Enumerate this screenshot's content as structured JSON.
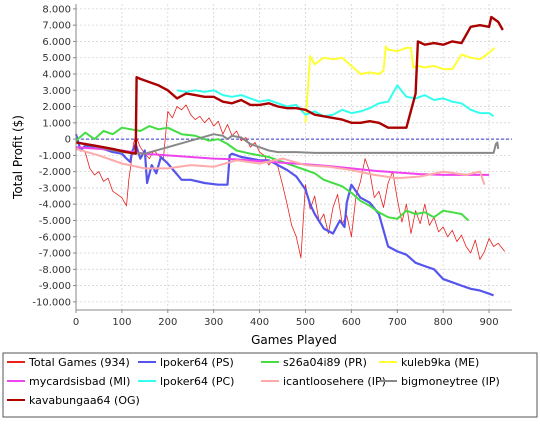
{
  "chart_data": {
    "type": "line",
    "xlabel": "Games Played",
    "ylabel": "Total Profit ($)",
    "xlim": [
      0,
      950
    ],
    "ylim": [
      -10500,
      8300
    ],
    "xticks": [
      0,
      100,
      200,
      300,
      400,
      500,
      600,
      700,
      800,
      900
    ],
    "xtick_labels": [
      "0",
      "100",
      "200",
      "300",
      "400",
      "500",
      "600",
      "700",
      "800",
      "900"
    ],
    "yticks": [
      8000,
      7000,
      6000,
      5000,
      4000,
      3000,
      2000,
      1000,
      0,
      -1000,
      -2000,
      -3000,
      -4000,
      -5000,
      -6000,
      -7000,
      -8000,
      -9000,
      -10000
    ],
    "ytick_labels": [
      "8.000",
      "7.000",
      "6.000",
      "5.000",
      "4.000",
      "3.000",
      "2.000",
      "1.000",
      "0",
      "-1.000",
      "-2.000",
      "-3.000",
      "-4.000",
      "-5.000",
      "-6.000",
      "-7.000",
      "-8.000",
      "-9.000",
      "-10.000"
    ],
    "grid": true,
    "legend_position": "bottom",
    "series": [
      {
        "name": "Total Games (934)",
        "color": "#e8211e",
        "width": 0.8,
        "x": [
          0,
          10,
          20,
          30,
          40,
          50,
          60,
          70,
          80,
          90,
          100,
          110,
          115,
          120,
          125,
          130,
          140,
          150,
          160,
          170,
          180,
          190,
          200,
          210,
          220,
          230,
          240,
          250,
          260,
          270,
          280,
          290,
          300,
          310,
          320,
          330,
          340,
          350,
          360,
          370,
          380,
          390,
          400,
          410,
          420,
          430,
          440,
          450,
          460,
          470,
          480,
          490,
          500,
          510,
          520,
          530,
          540,
          550,
          560,
          570,
          580,
          590,
          600,
          610,
          620,
          630,
          640,
          650,
          660,
          670,
          680,
          690,
          700,
          710,
          720,
          730,
          740,
          750,
          760,
          770,
          780,
          790,
          800,
          810,
          820,
          830,
          840,
          850,
          860,
          870,
          880,
          890,
          900,
          910,
          920,
          934
        ],
        "y": [
          300,
          -600,
          -800,
          -1800,
          -2200,
          -2000,
          -2600,
          -2400,
          -3200,
          -3400,
          -3600,
          -4100,
          -2500,
          -1500,
          -300,
          200,
          -500,
          -900,
          -1200,
          -700,
          -1000,
          -1300,
          1700,
          1300,
          2000,
          1800,
          2100,
          1500,
          1200,
          1400,
          1000,
          1300,
          800,
          1100,
          300,
          900,
          200,
          500,
          -100,
          100,
          -500,
          -200,
          -800,
          -1000,
          -1600,
          -1200,
          -1700,
          -2800,
          -4000,
          -5300,
          -6000,
          -7300,
          -2800,
          -4300,
          -3500,
          -5100,
          -4600,
          -5800,
          -4200,
          -3400,
          -5200,
          -4700,
          -6000,
          -3500,
          -2600,
          -1200,
          -2000,
          -3600,
          -3200,
          -4200,
          -2700,
          -2000,
          -3700,
          -5100,
          -4000,
          -5800,
          -4400,
          -5200,
          -4000,
          -5300,
          -4800,
          -5700,
          -5400,
          -6000,
          -5600,
          -6300,
          -5900,
          -6600,
          -7000,
          -6200,
          -7400,
          -6900,
          -6100,
          -6600,
          -6400,
          -6900
        ]
      },
      {
        "name": "lpoker64 (PS)",
        "color": "#5555ee",
        "width": 2.2,
        "x": [
          0,
          10,
          20,
          40,
          60,
          80,
          100,
          110,
          118,
          122,
          130,
          140,
          150,
          155,
          165,
          175,
          185,
          200,
          230,
          250,
          280,
          310,
          330,
          335,
          340,
          360,
          380,
          400,
          420,
          440,
          460,
          480,
          490,
          500,
          510,
          520,
          540,
          560,
          575,
          585,
          590,
          600,
          620,
          640,
          660,
          680,
          700,
          720,
          740,
          760,
          780,
          800,
          820,
          840,
          860,
          880,
          900,
          910
        ],
        "y": [
          300,
          -700,
          -400,
          -500,
          -600,
          -800,
          -900,
          -1200,
          -1400,
          -800,
          -300,
          -1200,
          -700,
          -2700,
          -1600,
          -2100,
          -1100,
          -1500,
          -2500,
          -2500,
          -2700,
          -2800,
          -2800,
          -1000,
          -900,
          -1100,
          -1200,
          -1300,
          -1300,
          -1600,
          -1900,
          -2300,
          -2700,
          -3100,
          -4000,
          -4600,
          -5500,
          -5800,
          -5000,
          -5400,
          -3900,
          -2800,
          -3600,
          -3900,
          -4600,
          -6600,
          -6900,
          -7100,
          -7600,
          -7800,
          -8000,
          -8600,
          -8800,
          -9000,
          -9200,
          -9300,
          -9500,
          -9600
        ]
      },
      {
        "name": "s26a04i89 (PR)",
        "color": "#44dd44",
        "width": 2.0,
        "x": [
          0,
          20,
          40,
          60,
          80,
          100,
          120,
          140,
          160,
          180,
          200,
          230,
          260,
          290,
          310,
          330,
          350,
          380,
          400,
          420,
          440,
          460,
          480,
          500,
          520,
          540,
          560,
          580,
          600,
          620,
          640,
          660,
          680,
          700,
          720,
          740,
          760,
          780,
          800,
          820,
          840,
          855
        ],
        "y": [
          -100,
          400,
          0,
          500,
          300,
          700,
          600,
          500,
          800,
          600,
          700,
          300,
          200,
          -100,
          0,
          -300,
          -700,
          -900,
          -1000,
          -1100,
          -1300,
          -1500,
          -1700,
          -1900,
          -2100,
          -2500,
          -2700,
          -2900,
          -3300,
          -3800,
          -4100,
          -4500,
          -4800,
          -4900,
          -4400,
          -4600,
          -4500,
          -4800,
          -4400,
          -4500,
          -4600,
          -5000
        ]
      },
      {
        "name": "kuleb9ka (ME)",
        "color": "#ffff33",
        "width": 2.0,
        "x": [
          500,
          510,
          520,
          540,
          560,
          580,
          600,
          620,
          640,
          660,
          670,
          675,
          680,
          700,
          720,
          730,
          735,
          745,
          760,
          780,
          800,
          820,
          840,
          860,
          880,
          900,
          912
        ],
        "y": [
          1000,
          5100,
          4600,
          5000,
          4900,
          5000,
          4500,
          4000,
          4100,
          4000,
          4200,
          5700,
          5500,
          5400,
          5600,
          5600,
          4400,
          4500,
          4400,
          4500,
          4300,
          4300,
          5200,
          5000,
          4900,
          5300,
          5600
        ]
      },
      {
        "name": "mycardsisbad (MI)",
        "color": "#ee44ee",
        "width": 2.0,
        "x": [
          0,
          50,
          100,
          150,
          200,
          250,
          300,
          350,
          400,
          450,
          500,
          550,
          600,
          650,
          700,
          750,
          800,
          850,
          900
        ],
        "y": [
          -500,
          -600,
          -700,
          -900,
          -1000,
          -1100,
          -1200,
          -1250,
          -1350,
          -1450,
          -1550,
          -1650,
          -1800,
          -1950,
          -2050,
          -2150,
          -2200,
          -2200,
          -2200
        ]
      },
      {
        "name": "lpoker64 (PC)",
        "color": "#33ffee",
        "width": 2.0,
        "x": [
          220,
          240,
          260,
          280,
          300,
          320,
          340,
          360,
          380,
          400,
          420,
          440,
          460,
          480,
          500,
          520,
          540,
          560,
          580,
          600,
          620,
          640,
          660,
          680,
          700,
          720,
          740,
          760,
          780,
          800,
          820,
          840,
          860,
          880,
          900,
          910
        ],
        "y": [
          3000,
          2900,
          3000,
          2900,
          3000,
          2700,
          2600,
          2700,
          2500,
          2300,
          2400,
          2200,
          2000,
          2100,
          1500,
          1700,
          1400,
          1500,
          1800,
          1600,
          1700,
          1900,
          2200,
          2300,
          3300,
          2600,
          2500,
          2700,
          2400,
          2500,
          2300,
          2200,
          1800,
          1600,
          1600,
          1400
        ]
      },
      {
        "name": "icantloosehere (IP)",
        "color": "#ffaaaa",
        "width": 2.0,
        "x": [
          0,
          50,
          100,
          150,
          200,
          250,
          300,
          350,
          400,
          450,
          500,
          550,
          600,
          650,
          700,
          750,
          800,
          850,
          880,
          890
        ],
        "y": [
          -600,
          -1000,
          -1500,
          -1800,
          -1800,
          -1600,
          -1700,
          -1300,
          -1500,
          -1200,
          -1600,
          -1700,
          -1900,
          -2200,
          -2400,
          -2300,
          -2000,
          -2200,
          -2000,
          -2800
        ]
      },
      {
        "name": "bigmoneytree (IP)",
        "color": "#888888",
        "width": 2.0,
        "x": [
          0,
          50,
          100,
          150,
          200,
          250,
          300,
          320,
          330,
          340,
          360,
          380,
          400,
          420,
          440,
          480,
          520,
          560,
          600,
          640,
          680,
          720,
          760,
          800,
          840,
          880,
          910,
          915,
          918,
          920
        ],
        "y": [
          -200,
          -500,
          -800,
          -900,
          -500,
          -100,
          300,
          200,
          0,
          200,
          100,
          -300,
          -500,
          -700,
          -800,
          -800,
          -850,
          -850,
          -850,
          -850,
          -850,
          -850,
          -850,
          -850,
          -850,
          -850,
          -850,
          -300,
          -200,
          -600
        ]
      },
      {
        "name": "kavabungaa64 (OG)",
        "color": "#aa0000",
        "width": 2.4,
        "x": [
          0,
          40,
          80,
          110,
          130,
          132,
          140,
          160,
          180,
          200,
          220,
          240,
          260,
          280,
          300,
          320,
          340,
          360,
          380,
          400,
          420,
          440,
          460,
          480,
          500,
          520,
          540,
          560,
          580,
          600,
          620,
          640,
          660,
          680,
          700,
          720,
          740,
          745,
          760,
          780,
          800,
          820,
          840,
          860,
          880,
          900,
          905,
          920,
          930
        ],
        "y": [
          -200,
          -400,
          -600,
          -800,
          -900,
          3800,
          3700,
          3500,
          3300,
          3000,
          2500,
          2800,
          2700,
          2600,
          2600,
          2300,
          2200,
          2400,
          2100,
          2100,
          2200,
          2000,
          1900,
          1900,
          1800,
          1500,
          1400,
          1300,
          1200,
          1000,
          1000,
          1100,
          1000,
          700,
          700,
          700,
          2800,
          6000,
          5800,
          5900,
          5800,
          6000,
          5900,
          6900,
          7000,
          6900,
          7500,
          7200,
          6700
        ]
      }
    ]
  }
}
